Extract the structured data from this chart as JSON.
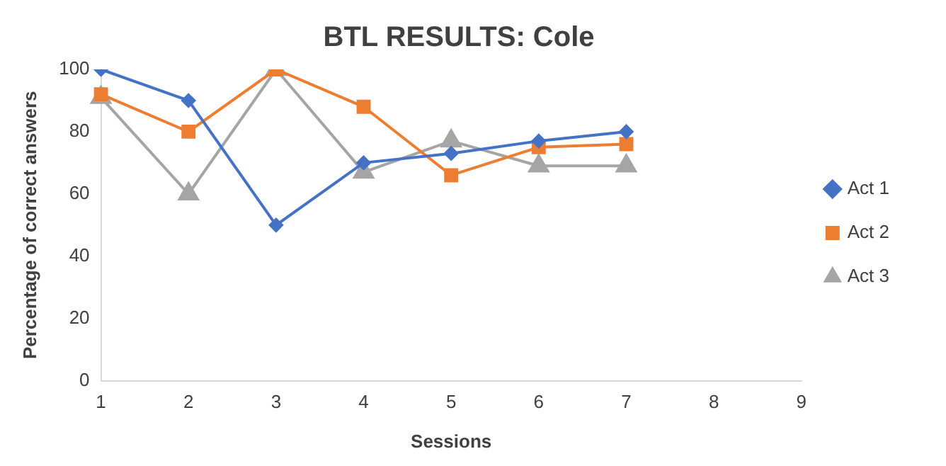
{
  "chart_data": {
    "type": "line",
    "title": "BTL RESULTS: Cole",
    "xlabel": "Sessions",
    "ylabel": "Percentage of correct answers",
    "categories": [
      "1",
      "2",
      "3",
      "4",
      "5",
      "6",
      "7",
      "8",
      "9"
    ],
    "ylim": [
      0,
      100
    ],
    "yticks": [
      0,
      20,
      40,
      60,
      80,
      100
    ],
    "grid": false,
    "legend": "right",
    "line_style": "solid",
    "series": [
      {
        "name": "Act 1",
        "color": "#4472c4",
        "marker": "diamond",
        "values": [
          100,
          90,
          50,
          70,
          73,
          77,
          80,
          null,
          null
        ]
      },
      {
        "name": "Act 2",
        "color": "#ed7d31",
        "marker": "square",
        "values": [
          92,
          80,
          100,
          88,
          66,
          75,
          76,
          null,
          null
        ]
      },
      {
        "name": "Act 3",
        "color": "#a5a5a5",
        "marker": "triangle",
        "values": [
          91,
          60,
          100,
          67,
          77,
          69,
          69,
          null,
          null
        ]
      }
    ]
  }
}
